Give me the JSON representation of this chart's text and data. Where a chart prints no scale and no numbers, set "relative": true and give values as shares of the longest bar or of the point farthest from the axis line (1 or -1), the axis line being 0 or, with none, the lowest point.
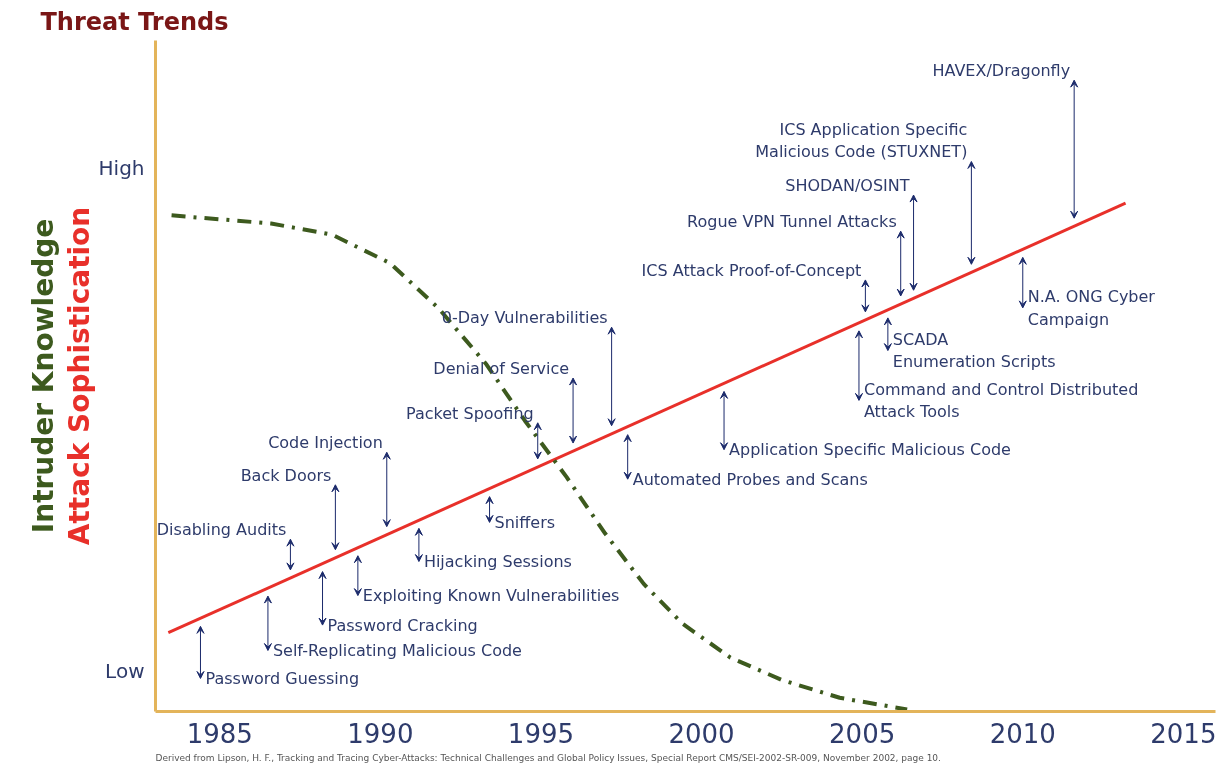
{
  "chart_data": {
    "type": "line",
    "title": "Threat Trends",
    "relative": true,
    "grid": false,
    "xlim": [
      1983.0,
      2016.0
    ],
    "xticks": [
      1985,
      1990,
      1995,
      2000,
      2005,
      2010,
      2015
    ],
    "series": [
      {
        "name": "Attack Sophistication",
        "color": "#e8302a",
        "line_style": "solid",
        "x": [
          1983.4,
          2013.2
        ],
        "values": [
          0.155,
          1.0
        ]
      },
      {
        "name": "Intruder Knowledge",
        "color": "#3d5a1e",
        "line_style": "dashed",
        "x": [
          1983.5,
          1986.6,
          1988.5,
          1990.3,
          1991.8,
          1993.3,
          1994.5,
          1995.8,
          1997.0,
          1998.2,
          1999.4,
          2000.9,
          2002.5,
          2004.3,
          2006.4
        ],
        "values": [
          0.976,
          0.96,
          0.938,
          0.882,
          0.794,
          0.683,
          0.572,
          0.461,
          0.35,
          0.251,
          0.173,
          0.106,
          0.062,
          0.027,
          0.004
        ]
      }
    ],
    "annotations": [
      "High",
      "Low",
      "Derived from Lipson, H. F., Tracking and Tracing Cyber-Attacks: Technical Challenges and Global Policy Issues, Special Report CMS/SEI-2002-SR-009, November 2002, page 10.",
      "Password Guessing",
      "Self-Replicating Malicious Code",
      "Disabling Audits",
      "Password Cracking",
      "Back Doors",
      "Exploiting Known Vulnerabilities",
      "Code Injection",
      "Hijacking Sessions",
      "Sniffers",
      "Packet Spoofing",
      "Denial of Service",
      "0-Day Vulnerabilities",
      "Automated Probes and Scans",
      "Application Specific Malicious Code",
      "ICS Attack Proof-of-Concept",
      "Command and Control Distributed\nAttack Tools",
      "SCADA\nEnumeration Scripts",
      "Rogue VPN Tunnel Attacks",
      "SHODAN/OSINT",
      "ICS Application Specific\nMalicious Code (STUXNET)",
      "HAVEX/Dragonfly",
      "N.A. ONG Cyber\nCampaign"
    ]
  }
}
